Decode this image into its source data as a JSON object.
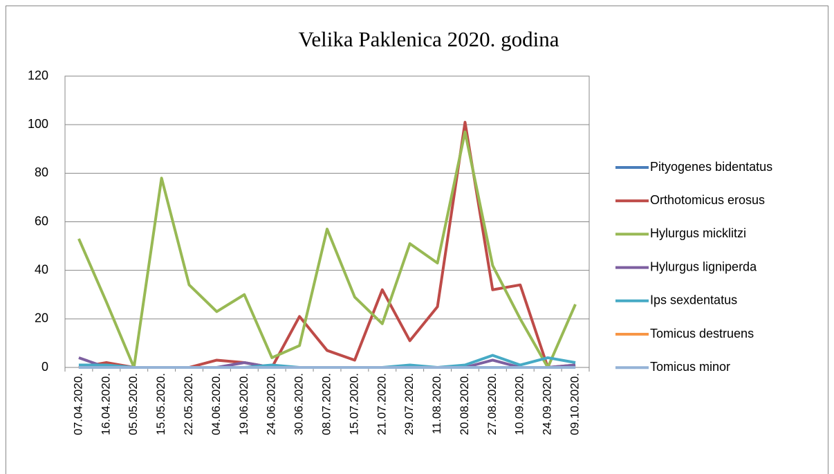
{
  "chart_data": {
    "type": "line",
    "title": "Velika Paklenica 2020. godina",
    "categories": [
      "07.04.2020.",
      "16.04.2020.",
      "05.05.2020.",
      "15.05.2020.",
      "22.05.2020.",
      "04.06.2020.",
      "19.06.2020.",
      "24.06.2020.",
      "30.06.2020.",
      "08.07.2020.",
      "15.07.2020.",
      "21.07.2020.",
      "29.07.2020.",
      "11.08.2020.",
      "20.08.2020.",
      "27.08.2020.",
      "10.09.2020.",
      "24.09.2020.",
      "09.10.2020."
    ],
    "series": [
      {
        "name": "Pityogenes bidentatus",
        "color": "#4a7ebb",
        "values": [
          0,
          0,
          0,
          0,
          0,
          0,
          0,
          0,
          0,
          0,
          0,
          0,
          0,
          0,
          0,
          0,
          0,
          0,
          0
        ]
      },
      {
        "name": "Orthotomicus erosus",
        "color": "#be4b48",
        "values": [
          0,
          2,
          0,
          0,
          0,
          3,
          2,
          0,
          21,
          7,
          3,
          32,
          11,
          25,
          101,
          32,
          34,
          0,
          1
        ]
      },
      {
        "name": "Hylurgus micklitzi",
        "color": "#98b954",
        "values": [
          53,
          27,
          0,
          78,
          34,
          23,
          30,
          4,
          9,
          57,
          29,
          18,
          51,
          43,
          97,
          42,
          20,
          0,
          26
        ]
      },
      {
        "name": "Hylurgus ligniperda",
        "color": "#7d5fa0",
        "values": [
          4,
          0,
          0,
          0,
          0,
          0,
          2,
          0,
          0,
          0,
          0,
          0,
          0,
          0,
          0,
          3,
          0,
          0,
          1
        ]
      },
      {
        "name": "Ips sexdentatus",
        "color": "#46aac5",
        "values": [
          1,
          1,
          0,
          0,
          0,
          0,
          0,
          1,
          0,
          0,
          0,
          0,
          1,
          0,
          1,
          5,
          1,
          4,
          2
        ]
      },
      {
        "name": "Tomicus destruens",
        "color": "#f79646",
        "values": [
          0,
          0,
          0,
          0,
          0,
          0,
          0,
          0,
          0,
          0,
          0,
          0,
          0,
          0,
          0,
          0,
          0,
          0,
          0
        ]
      },
      {
        "name": "Tomicus minor",
        "color": "#95b3d7",
        "values": [
          0,
          0,
          0,
          0,
          0,
          0,
          0,
          0,
          0,
          0,
          0,
          0,
          0,
          0,
          0,
          0,
          0,
          0,
          0
        ]
      }
    ],
    "ylim": [
      0,
      120
    ],
    "yticks": [
      0,
      20,
      40,
      60,
      80,
      100,
      120
    ],
    "grid": true,
    "legend": "right"
  }
}
